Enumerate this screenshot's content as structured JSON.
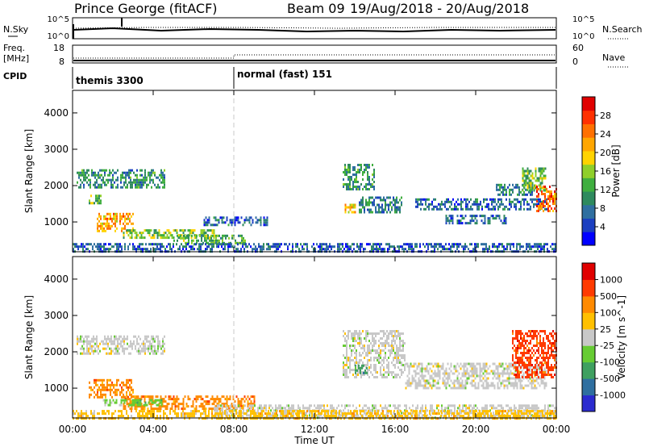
{
  "header": {
    "station": "Prince George (fitACF)",
    "beam": "Beam 09",
    "period": "19/Aug/2018 - 20/Aug/2018"
  },
  "noise_panel": {
    "left_label": "N.Sky",
    "left_ticks": [
      "10^5",
      "10^0"
    ],
    "right_label": "N.Search",
    "right_ticks": [
      "10^5",
      "10^0"
    ]
  },
  "freq_panel": {
    "left_label_line1": "Freq.",
    "left_label_line2": "[MHz]",
    "left_ticks": [
      "18",
      "8"
    ],
    "right_label": "Nave",
    "right_ticks": [
      "60",
      "0"
    ]
  },
  "cpid": {
    "label": "CPID",
    "segments": [
      {
        "name": "themis 3300",
        "start_hour": 0
      },
      {
        "name": "normal (fast) 151",
        "start_hour": 8
      }
    ]
  },
  "x_axis": {
    "label": "Time UT",
    "ticks": [
      "00:00",
      "04:00",
      "08:00",
      "12:00",
      "16:00",
      "20:00",
      "00:00"
    ]
  },
  "chart_data": [
    {
      "type": "heatmap",
      "name": "power",
      "ylabel": "Slant Range [km]",
      "yticks": [
        "1000",
        "2000",
        "3000",
        "4000"
      ],
      "ylim": [
        180,
        4620
      ],
      "xlim": [
        0,
        24
      ],
      "colorbar_label": "Power [dB]",
      "colorbar_ticks": [
        "28",
        "24",
        "20",
        "16",
        "12",
        "8",
        "4"
      ],
      "colorbar_range": [
        0,
        32
      ],
      "colors": [
        "#0000ff",
        "#1b3fc0",
        "#2f6fa0",
        "#2e8a5e",
        "#3fae3f",
        "#8fcf2a",
        "#ffd300",
        "#ffa600",
        "#ff7000",
        "#ff3000",
        "#e00000"
      ],
      "regions": [
        {
          "t": [
            0.2,
            4.6
          ],
          "r": [
            1950,
            2450
          ],
          "v": 10
        },
        {
          "t": [
            0.8,
            1.4
          ],
          "r": [
            1500,
            1750
          ],
          "v": 14
        },
        {
          "t": [
            1.2,
            3.0
          ],
          "r": [
            750,
            1250
          ],
          "v": 22
        },
        {
          "t": [
            2.5,
            7.0
          ],
          "r": [
            550,
            800
          ],
          "v": 15
        },
        {
          "t": [
            5.0,
            8.6
          ],
          "r": [
            420,
            650
          ],
          "v": 13
        },
        {
          "t": [
            6.5,
            9.7
          ],
          "r": [
            950,
            1150
          ],
          "v": 7
        },
        {
          "t": [
            0.0,
            24.0
          ],
          "r": [
            200,
            420
          ],
          "v": 6
        },
        {
          "t": [
            13.4,
            15.0
          ],
          "r": [
            1900,
            2600
          ],
          "v": 11
        },
        {
          "t": [
            13.5,
            14.0
          ],
          "r": [
            1300,
            1500
          ],
          "v": 20
        },
        {
          "t": [
            14.2,
            16.3
          ],
          "r": [
            1300,
            1700
          ],
          "v": 9
        },
        {
          "t": [
            17.0,
            23.5
          ],
          "r": [
            1350,
            1650
          ],
          "v": 7
        },
        {
          "t": [
            18.5,
            21.5
          ],
          "r": [
            1000,
            1200
          ],
          "v": 7
        },
        {
          "t": [
            21.0,
            22.8
          ],
          "r": [
            1750,
            2050
          ],
          "v": 9
        },
        {
          "t": [
            22.3,
            23.5
          ],
          "r": [
            1900,
            2500
          ],
          "v": 14
        },
        {
          "t": [
            23.0,
            24.0
          ],
          "r": [
            1300,
            2000
          ],
          "v": 25
        }
      ]
    },
    {
      "type": "heatmap",
      "name": "velocity",
      "ylabel": "Slant Range [km]",
      "yticks": [
        "1000",
        "2000",
        "3000",
        "4000"
      ],
      "ylim": [
        180,
        4620
      ],
      "xlim": [
        0,
        24
      ],
      "colorbar_label": "Velocity [m s^-1]",
      "colorbar_ticks": [
        "1000",
        "500",
        "100",
        "25",
        "-25",
        "-100",
        "-500",
        "-1000"
      ],
      "colors": [
        "#2b2bcf",
        "#2f6fa0",
        "#3fa060",
        "#66cc33",
        "#c8c8c8",
        "#ffc000",
        "#ff8a00",
        "#ff3a00",
        "#e00000"
      ],
      "regions": [
        {
          "t": [
            0.2,
            4.6
          ],
          "r": [
            1950,
            2450
          ],
          "c": 4
        },
        {
          "t": [
            0.8,
            3.0
          ],
          "r": [
            750,
            1250
          ],
          "c": 6
        },
        {
          "t": [
            2.5,
            9.0
          ],
          "r": [
            450,
            800
          ],
          "c": 6
        },
        {
          "t": [
            1.5,
            4.5
          ],
          "r": [
            550,
            700
          ],
          "c": 3
        },
        {
          "t": [
            7.0,
            24.0
          ],
          "r": [
            200,
            550
          ],
          "c": 4
        },
        {
          "t": [
            0.0,
            24.0
          ],
          "r": [
            200,
            400
          ],
          "c": 5
        },
        {
          "t": [
            13.4,
            16.5
          ],
          "r": [
            1300,
            2600
          ],
          "c": 4
        },
        {
          "t": [
            14.0,
            14.6
          ],
          "r": [
            1450,
            1650
          ],
          "c": 2
        },
        {
          "t": [
            16.5,
            23.5
          ],
          "r": [
            1000,
            1700
          ],
          "c": 4
        },
        {
          "t": [
            21.8,
            24.0
          ],
          "r": [
            1300,
            2600
          ],
          "c": 7
        }
      ]
    }
  ]
}
